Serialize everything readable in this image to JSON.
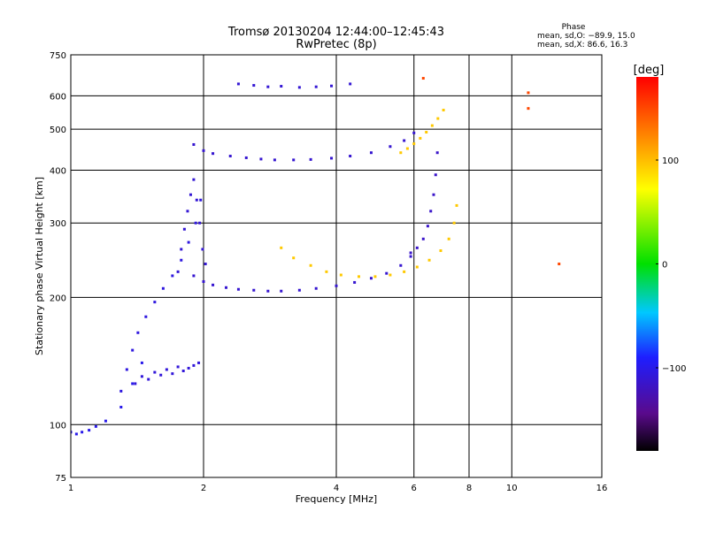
{
  "chart_data": {
    "type": "scatter",
    "title": "Tromsø 20130204 12:44:00–12:45:43",
    "subtitle": "RwPretec (8p)",
    "xlabel": "Frequency [MHz]",
    "ylabel": "Stationary phase Virtual Height [km]",
    "xscale": "log",
    "yscale": "log",
    "xlim": [
      1,
      16
    ],
    "ylim": [
      75,
      750
    ],
    "xticks": [
      1,
      2,
      4,
      6,
      8,
      10,
      16
    ],
    "xtick_labels": [
      "1",
      "2",
      "4",
      "6",
      "8",
      "10",
      "16"
    ],
    "yticks": [
      75,
      100,
      200,
      300,
      400,
      500,
      600,
      750
    ],
    "ytick_labels": [
      "75",
      "100",
      "200",
      "300",
      "400",
      "500",
      "600",
      "750"
    ],
    "grid": true,
    "phase_box": {
      "title": "Phase",
      "line_o": "mean, sd,O: −89.9, 15.0",
      "line_x": "mean, sd,X: 86.6, 16.3"
    },
    "colorbar": {
      "label": "[deg]",
      "range": [
        -180,
        180
      ],
      "ticks": [
        100,
        0,
        -100
      ],
      "tick_labels": [
        "100",
        "0",
        "−100"
      ],
      "colormap": "rainbow (black-purple-blue-cyan-green-yellow-red)"
    },
    "traces": [
      {
        "mode": "O",
        "phase": -100,
        "x": [
          1.0,
          1.03,
          1.06,
          1.1,
          1.14,
          1.2,
          1.3,
          1.38,
          1.45
        ],
        "y": [
          96,
          95,
          96,
          97,
          99,
          102,
          110,
          125,
          140
        ]
      },
      {
        "mode": "O",
        "phase": -105,
        "x": [
          1.3,
          1.34,
          1.38,
          1.42,
          1.48,
          1.55,
          1.62,
          1.7,
          1.78,
          1.85,
          1.92,
          1.97
        ],
        "y": [
          120,
          135,
          150,
          165,
          180,
          195,
          210,
          225,
          245,
          270,
          300,
          340
        ]
      },
      {
        "mode": "O",
        "phase": -108,
        "x": [
          1.4,
          1.45,
          1.5,
          1.55,
          1.6,
          1.65,
          1.7,
          1.75,
          1.8,
          1.85,
          1.9,
          1.95
        ],
        "y": [
          125,
          130,
          128,
          133,
          131,
          135,
          132,
          137,
          134,
          136,
          138,
          140
        ]
      },
      {
        "mode": "O",
        "phase": -110,
        "x": [
          1.75,
          1.78,
          1.81,
          1.84,
          1.87,
          1.9,
          1.93,
          1.96,
          1.99,
          2.02
        ],
        "y": [
          230,
          260,
          290,
          320,
          350,
          380,
          340,
          300,
          260,
          240
        ]
      },
      {
        "mode": "O",
        "phase": -112,
        "x": [
          1.9,
          2.0,
          2.1,
          2.25,
          2.4,
          2.6,
          2.8,
          3.0,
          3.3,
          3.6,
          4.0,
          4.4,
          4.8,
          5.2,
          5.6,
          5.9
        ],
        "y": [
          225,
          218,
          214,
          211,
          209,
          208,
          207,
          207,
          208,
          210,
          213,
          217,
          222,
          228,
          238,
          250
        ]
      },
      {
        "mode": "O",
        "phase": -115,
        "x": [
          5.9,
          6.1,
          6.3,
          6.45,
          6.55,
          6.65,
          6.72,
          6.78
        ],
        "y": [
          255,
          262,
          275,
          295,
          320,
          350,
          390,
          440
        ]
      },
      {
        "mode": "O",
        "phase": -112,
        "x": [
          1.9,
          2.0,
          2.1,
          2.3,
          2.5,
          2.7,
          2.9,
          3.2,
          3.5,
          3.9,
          4.3,
          4.8,
          5.3,
          5.7,
          6.0
        ],
        "y": [
          460,
          445,
          438,
          432,
          428,
          425,
          423,
          423,
          424,
          427,
          432,
          440,
          455,
          470,
          490
        ]
      },
      {
        "mode": "O",
        "phase": -110,
        "x": [
          2.4,
          2.6,
          2.8,
          3.0,
          3.3,
          3.6,
          3.9,
          4.3
        ],
        "y": [
          640,
          635,
          630,
          632,
          628,
          630,
          633,
          640
        ]
      },
      {
        "mode": "X",
        "phase": 95,
        "x": [
          3.0,
          3.2,
          3.5,
          3.8,
          4.1,
          4.5,
          4.9,
          5.3,
          5.7,
          6.1,
          6.5,
          6.9,
          7.2,
          7.4,
          7.5
        ],
        "y": [
          262,
          248,
          238,
          230,
          226,
          224,
          224,
          226,
          230,
          236,
          245,
          258,
          275,
          300,
          330
        ]
      },
      {
        "mode": "X",
        "phase": 95,
        "x": [
          5.6,
          5.8,
          6.0,
          6.2,
          6.4,
          6.6,
          6.8,
          7.0
        ],
        "y": [
          440,
          450,
          462,
          476,
          492,
          510,
          530,
          555
        ]
      },
      {
        "mode": "X",
        "phase": 150,
        "x": [
          6.3,
          10.9,
          10.9,
          12.8
        ],
        "y": [
          660,
          610,
          560,
          240
        ]
      }
    ]
  }
}
